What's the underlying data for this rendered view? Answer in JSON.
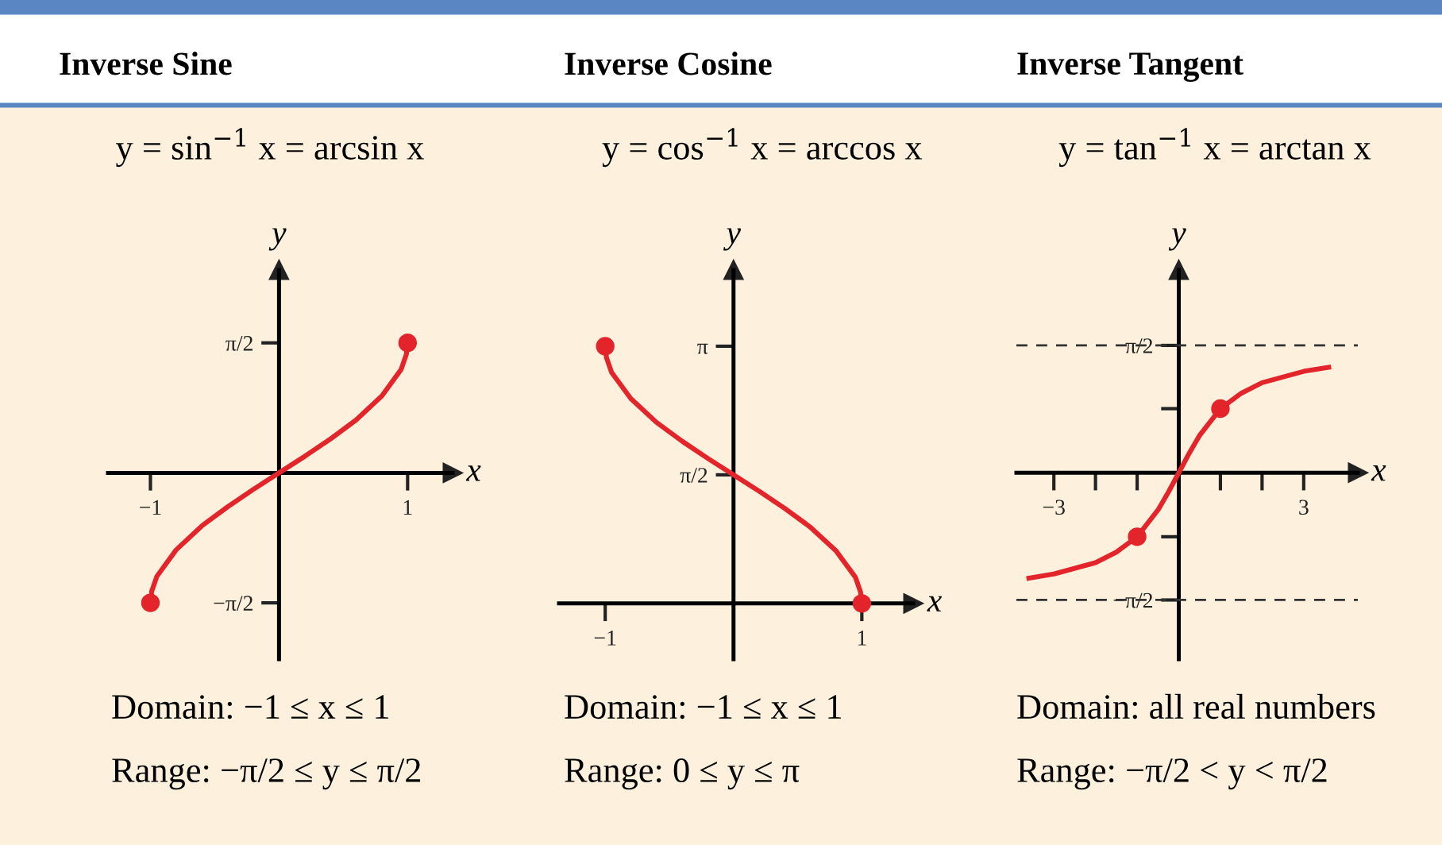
{
  "chart_data": [
    {
      "type": "line",
      "title": "Inverse Sine",
      "subtitle": "y = sin$^{−1}$ x = arcsin x",
      "xlabel": "x",
      "ylabel": "y",
      "xlim": [
        -1.33,
        1.35
      ],
      "ylim": [
        -2.25,
        2.45
      ],
      "xticks": [
        -1,
        1
      ],
      "yticks": [
        {
          "value": 1.57,
          "label": "π/2"
        },
        {
          "value": -1.57,
          "label": "−π/2"
        }
      ],
      "grid": false,
      "series": [
        {
          "color": "#e3242b",
          "marker": "none",
          "x": [
            -1,
            -0.99,
            -0.95,
            -0.8,
            -0.6,
            -0.4,
            -0.2,
            0,
            0.2,
            0.4,
            0.6,
            0.8,
            0.95,
            0.99,
            1
          ],
          "values": [
            -1.57,
            -1.43,
            -1.25,
            -0.93,
            -0.64,
            -0.41,
            -0.2,
            0,
            0.2,
            0.41,
            0.64,
            0.93,
            1.25,
            1.43,
            1.57
          ]
        },
        {
          "type": "scatter",
          "color": "#e3242b",
          "marker": "circle",
          "x": [
            -1,
            1
          ],
          "values": [
            -1.57,
            1.57
          ]
        }
      ],
      "annotations": [
        "Domain: −1 ≤ x ≤ 1",
        "Range: −π/2 ≤ y ≤ π/2"
      ]
    },
    {
      "type": "line",
      "title": "Inverse Cosine",
      "subtitle": "y = cos$^{−1}$ x = arccos x",
      "xlabel": "x",
      "ylabel": "y",
      "xlim": [
        -1.36,
        1.4
      ],
      "ylim": [
        -0.68,
        4.07
      ],
      "xticks": [
        -1,
        1
      ],
      "yticks": [
        {
          "value": 3.14,
          "label": "π"
        },
        {
          "value": 1.57,
          "label": "π/2"
        }
      ],
      "grid": false,
      "series": [
        {
          "color": "#e3242b",
          "marker": "none",
          "x": [
            -1,
            -0.99,
            -0.95,
            -0.8,
            -0.6,
            -0.4,
            -0.2,
            0,
            0.2,
            0.4,
            0.6,
            0.8,
            0.95,
            0.99,
            1
          ],
          "values": [
            3.14,
            3.0,
            2.82,
            2.5,
            2.21,
            1.98,
            1.77,
            1.57,
            1.37,
            1.16,
            0.93,
            0.64,
            0.32,
            0.14,
            0
          ]
        },
        {
          "type": "scatter",
          "color": "#e3242b",
          "marker": "circle",
          "x": [
            -1,
            1
          ],
          "values": [
            3.14,
            0
          ]
        }
      ],
      "annotations": [
        "Domain: −1 ≤ x ≤ 1",
        "Range: 0 ≤ y ≤ π"
      ]
    },
    {
      "type": "line",
      "title": "Inverse Tangent",
      "subtitle": "y = tan$^{−1}$ x = arctan x",
      "xlabel": "x",
      "ylabel": "y",
      "xlim": [
        -3.9,
        4.3
      ],
      "ylim": [
        -2.3,
        2.5
      ],
      "xticks": [
        -3,
        {
          "value": -2,
          "label": null
        },
        {
          "value": -1,
          "label": null
        },
        {
          "value": 1,
          "label": null
        },
        {
          "value": 2,
          "label": null
        },
        3
      ],
      "yticks": [
        {
          "value": 1.57,
          "label": "π/2"
        },
        {
          "value": 0.79,
          "label": null
        },
        {
          "value": -0.79,
          "label": null
        },
        {
          "value": -1.57,
          "label": "−π/2"
        }
      ],
      "grid": false,
      "ref_lines": [
        {
          "axis": "y",
          "value": 1.57,
          "line_style": "dashed",
          "color": "#333333"
        },
        {
          "axis": "y",
          "value": -1.57,
          "line_style": "dashed",
          "color": "#333333"
        }
      ],
      "series": [
        {
          "color": "#e3242b",
          "marker": "none",
          "x": [
            -3.6,
            -3,
            -2,
            -1.5,
            -1,
            -0.5,
            -0.25,
            0,
            0.25,
            0.5,
            1,
            1.5,
            2,
            3,
            3.6
          ],
          "values": [
            -1.3,
            -1.25,
            -1.11,
            -0.98,
            -0.79,
            -0.46,
            -0.24,
            0,
            0.24,
            0.46,
            0.79,
            0.98,
            1.11,
            1.25,
            1.3
          ]
        },
        {
          "type": "scatter",
          "color": "#e3242b",
          "marker": "circle",
          "x": [
            -1,
            1
          ],
          "values": [
            -0.79,
            0.79
          ]
        }
      ],
      "annotations": [
        "Domain: all real numbers",
        "Range: −π/2 < y < π/2"
      ]
    }
  ]
}
